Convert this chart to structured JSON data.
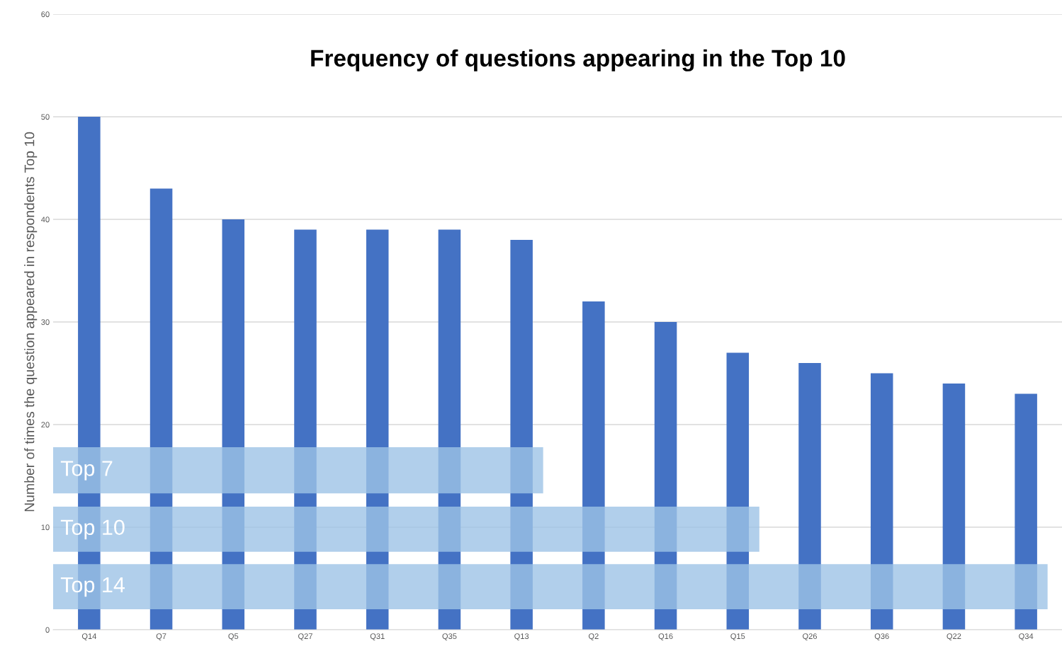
{
  "chart_data": {
    "type": "bar",
    "title": "Frequency of questions appearing in the Top 10",
    "ylabel": "Number of times the question appeared in respondents Top 10",
    "categories": [
      "Q14",
      "Q7",
      "Q5",
      "Q27",
      "Q31",
      "Q35",
      "Q13",
      "Q2",
      "Q16",
      "Q15",
      "Q26",
      "Q36",
      "Q22",
      "Q34"
    ],
    "values": [
      50,
      43,
      40,
      39,
      39,
      39,
      38,
      32,
      30,
      27,
      26,
      25,
      24,
      23
    ],
    "color": "#4472c4",
    "ylim": [
      0,
      60
    ],
    "yticks": [
      0,
      10,
      20,
      30,
      40,
      50,
      60
    ],
    "grid": "y",
    "bands": [
      {
        "axis": "y",
        "from": 13.3,
        "to": 17.8,
        "label": "Top 7",
        "color": "#9dc3e6"
      },
      {
        "axis": "y",
        "from": 7.6,
        "to": 12.0,
        "label": "Top 10",
        "color": "#9dc3e6"
      },
      {
        "axis": "y",
        "from": 2.0,
        "to": 6.4,
        "label": "Top 14",
        "color": "#9dc3e6"
      }
    ]
  }
}
